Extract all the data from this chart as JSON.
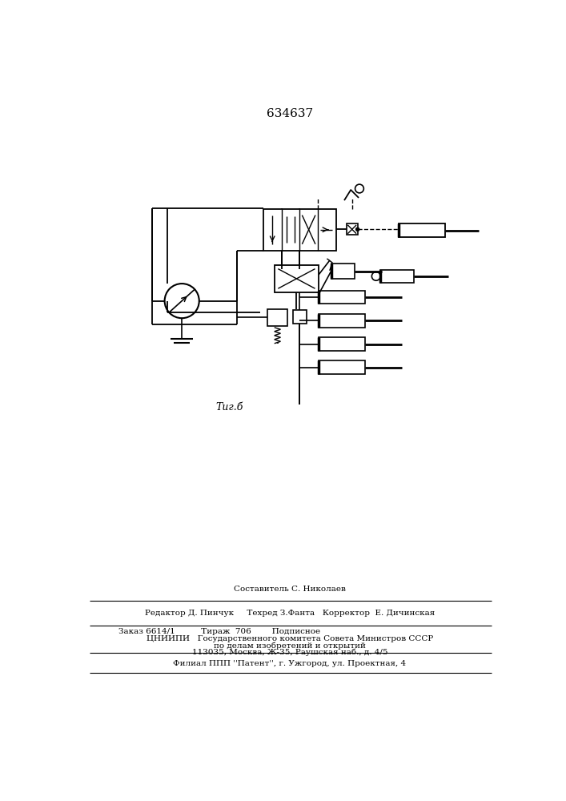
{
  "title": "634637",
  "fig_label": "Τиг.б",
  "bg_color": "#ffffff",
  "line_color": "#000000",
  "footer_line1": "Составитель С. Николаев",
  "footer_line2": "Редактор Д. Пинчук     Техред З.Фанта   Корректор  Е. Дичинская",
  "footer_line3": "Заказ 6614/1          Тираж  706        Подписное",
  "footer_line4": "ЦНИИПИ   Государственного комитета Совета Министров СССР",
  "footer_line5": "по делам изобретений и открытий",
  "footer_line6": "113035, Москва, Ж-35, Раушская наб., д. 4/5",
  "footer_line7": "Филиал ППП ''Патент'', г. Ужгород, ул. Проектная, 4"
}
